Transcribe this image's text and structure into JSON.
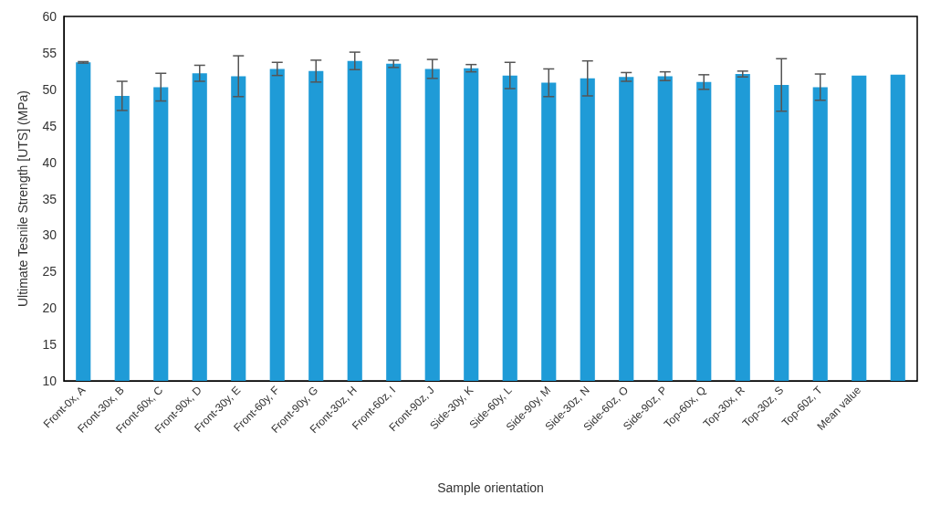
{
  "chart_data": {
    "type": "bar",
    "xlabel": "Sample orientation",
    "ylabel": "Ultimate Tesnile Strength [UTS] (MPa)",
    "categories": [
      "Front-0x, A",
      "Front-30x, B",
      "Front-60x, C",
      "Front-90x, D",
      "Front-30y, E",
      "Front-60y, F",
      "Front-90y, G",
      "Front-30z, H",
      "Front-60z, I",
      "Front-90z, J",
      "Side-30y, K",
      "Side-60y, L",
      "Side-90y, M",
      "Side-30z, N",
      "Side-60z, O",
      "Side-90z, P",
      "Top-60x, Q",
      "Top-30x, R",
      "Top-30z, S",
      "Top-60z, T",
      "Mean value",
      null
    ],
    "values": [
      53.7,
      49.1,
      50.3,
      52.2,
      51.8,
      52.8,
      52.5,
      53.9,
      53.5,
      52.8,
      52.9,
      51.9,
      50.9,
      51.5,
      51.7,
      51.8,
      51.0,
      52.1,
      50.6,
      50.3,
      51.9,
      52.0
    ],
    "errors": [
      0.1,
      2.0,
      1.9,
      1.1,
      2.8,
      0.9,
      1.5,
      1.2,
      0.5,
      1.3,
      0.5,
      1.8,
      1.9,
      2.4,
      0.6,
      0.6,
      1.0,
      0.4,
      3.6,
      1.8,
      null,
      null
    ],
    "color": "#1f9bd7",
    "ylim": [
      10,
      60
    ],
    "yticks": [
      10,
      15,
      20,
      25,
      30,
      35,
      40,
      45,
      50,
      55,
      60
    ],
    "grid": false
  }
}
